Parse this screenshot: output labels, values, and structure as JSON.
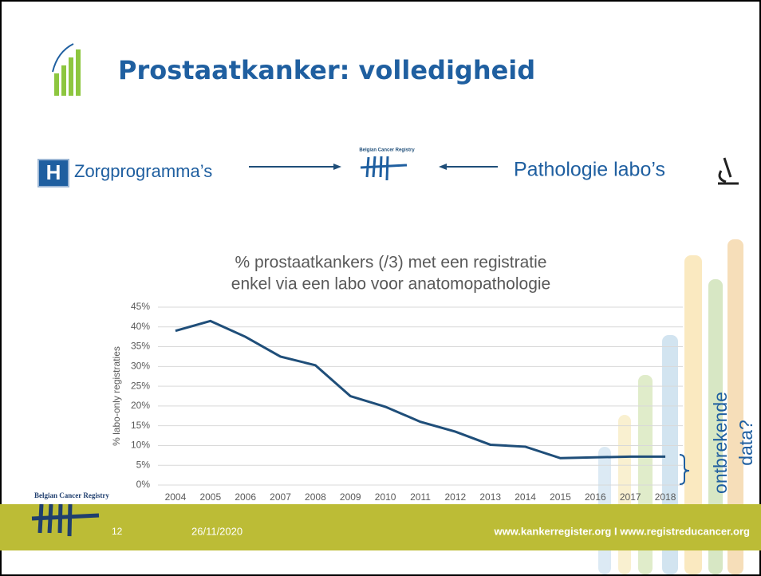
{
  "slide": {
    "title": "Prostaatkanker: volledigheid",
    "left_label": "Zorgprogramma’s",
    "right_label": "Pathologie labo’s",
    "hospital_icon": "H",
    "logo_text": "Belgian Cancer Registry",
    "footer_logo_text": "Belgian Cancer Registry",
    "page_number": "12",
    "date": "26/11/2020",
    "url": "www.kankerregister.org  I  www.registreducancer.org"
  },
  "chart_data": {
    "type": "line",
    "title": [
      "% prostaatkankers (/3) met een registratie",
      "enkel via een labo voor anatomopathologie"
    ],
    "y_label": "% labo-only registraties",
    "categories": [
      "2004",
      "2005",
      "2006",
      "2007",
      "2008",
      "2009",
      "2010",
      "2011",
      "2012",
      "2013",
      "2014",
      "2015",
      "2016",
      "2017",
      "2018"
    ],
    "values": [
      39,
      41.5,
      37.5,
      32.5,
      30.3,
      22.5,
      19.8,
      16,
      13.5,
      10.2,
      9.7,
      6.8,
      7,
      7.2,
      7.2
    ],
    "color": "#1f4e79",
    "ylim": [
      0,
      45
    ],
    "yticks": [
      {
        "value": 0,
        "label": "0%"
      },
      {
        "value": 5,
        "label": "5%"
      },
      {
        "value": 10,
        "label": "10%"
      },
      {
        "value": 15,
        "label": "15%"
      },
      {
        "value": 20,
        "label": "20%"
      },
      {
        "value": 25,
        "label": "25%"
      },
      {
        "value": 30,
        "label": "30%"
      },
      {
        "value": 35,
        "label": "35%"
      },
      {
        "value": 40,
        "label": "40%"
      },
      {
        "value": 45,
        "label": "45%"
      }
    ],
    "grid": true,
    "annotation": [
      "ontbrekende",
      "data?"
    ]
  }
}
